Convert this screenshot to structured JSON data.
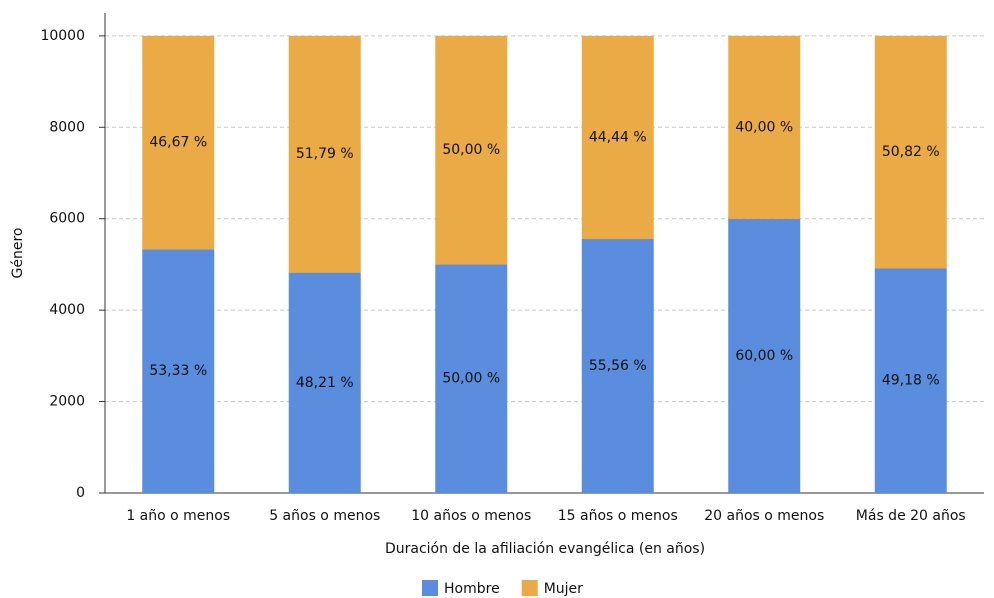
{
  "chart_data": {
    "type": "stacked_bar",
    "y_label": "Género",
    "x_label": "Duración de la afiliación evangélica (en años)",
    "categories": [
      "1 año o menos",
      "5 años o menos",
      "10 años o menos",
      "15 años o menos",
      "20 años o menos",
      "Más de 20 años"
    ],
    "series": [
      {
        "name": "Hombre",
        "color": "#5b8dde",
        "values": [
          5333,
          4821,
          5000,
          5556,
          6000,
          4918
        ],
        "value_labels": [
          "53,33 %",
          "48,21 %",
          "50,00 %",
          "55,56 %",
          "60,00 %",
          "49,18 %"
        ]
      },
      {
        "name": "Mujer",
        "color": "#eaaa45",
        "values": [
          4667,
          5179,
          5000,
          4444,
          4000,
          5082
        ],
        "value_labels": [
          "46,67 %",
          "51,79 %",
          "50,00 %",
          "44,44 %",
          "40,00 %",
          "50,82 %"
        ]
      }
    ],
    "ylim": [
      0,
      10500
    ],
    "yticks": [
      0,
      2000,
      4000,
      6000,
      8000,
      10000
    ],
    "grid": true,
    "legend": "bottom"
  }
}
